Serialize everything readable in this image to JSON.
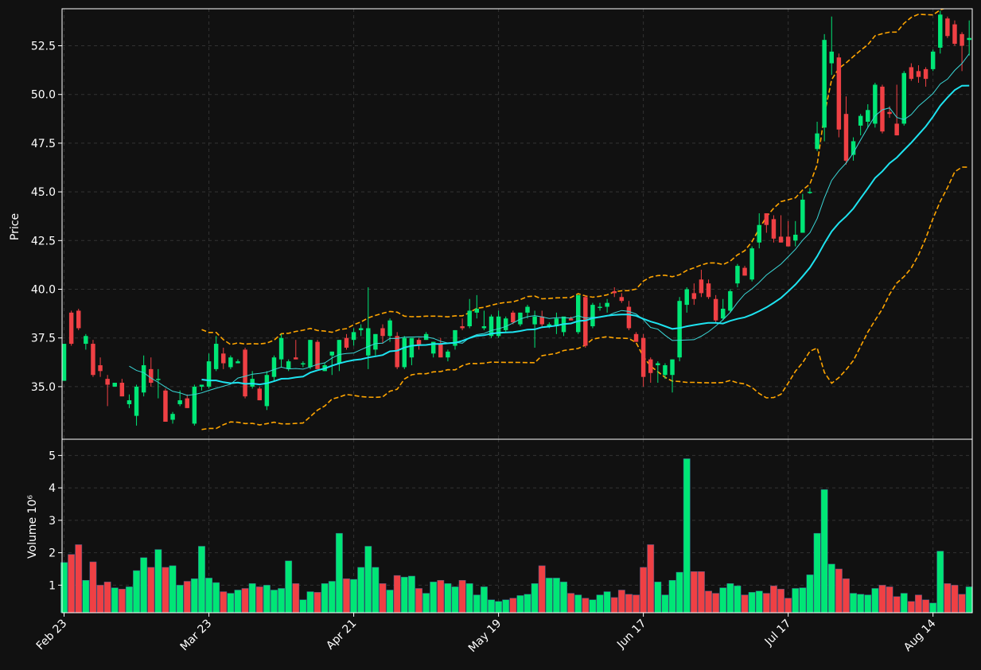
{
  "chart_data": {
    "type": "candlestick",
    "colors": {
      "background": "#111111",
      "up": "#00e676",
      "down": "#ef4044",
      "ma_short": "#3ad6d6",
      "ma_long": "#1ee3f0",
      "bollinger": "#ffa500",
      "grid": "#333333",
      "frame": "#ffffff"
    },
    "price_panel": {
      "ylabel": "Price",
      "ylim": [
        32.3,
        54.4
      ],
      "yticks": [
        35.0,
        37.5,
        40.0,
        42.5,
        45.0,
        47.5,
        50.0,
        52.5
      ],
      "ytick_labels": [
        "35.0",
        "37.5",
        "40.0",
        "42.5",
        "45.0",
        "47.5",
        "50.0",
        "52.5"
      ],
      "grid": true
    },
    "volume_panel": {
      "ylabel": "Volume  10⁶",
      "ylim": [
        0.15,
        5.5
      ],
      "yticks": [
        1,
        2,
        3,
        4,
        5
      ],
      "ytick_labels": [
        "1",
        "2",
        "3",
        "4",
        "5"
      ],
      "grid": true
    },
    "x_axis": {
      "tick_labels": [
        "Feb 23",
        "Mar 23",
        "Apr 21",
        "May 19",
        "Jun 17",
        "Jul 17",
        "Aug 14"
      ],
      "tick_index": [
        0,
        20,
        40,
        60,
        80,
        100,
        120
      ]
    },
    "ohlcv": [
      [
        "Feb 23",
        35.3,
        37.2,
        35.3,
        37.2,
        1.7
      ],
      [
        38.8,
        38.9,
        37.1,
        37.2,
        1.95
      ],
      [
        38.9,
        39.0,
        37.9,
        38.0,
        2.25
      ],
      [
        37.2,
        37.7,
        36.9,
        37.6,
        1.15
      ],
      [
        37.2,
        37.4,
        35.5,
        35.6,
        1.72
      ],
      [
        36.1,
        36.5,
        35.5,
        35.8,
        1.0
      ],
      [
        35.4,
        35.6,
        34.0,
        35.1,
        1.1
      ],
      [
        35.0,
        35.2,
        35.0,
        35.2,
        0.92
      ],
      [
        35.2,
        35.4,
        34.5,
        34.5,
        0.88
      ],
      [
        34.1,
        34.6,
        33.9,
        34.3,
        0.95
      ],
      [
        33.5,
        35.1,
        33.0,
        35.0,
        1.45
      ],
      [
        34.7,
        36.6,
        34.5,
        36.1,
        1.85
      ],
      [
        35.9,
        36.5,
        35.0,
        35.2,
        1.55
      ],
      [
        35.4,
        35.9,
        34.4,
        35.4,
        2.1
      ],
      [
        34.8,
        34.9,
        33.2,
        33.2,
        1.55
      ],
      [
        33.3,
        33.7,
        33.1,
        33.6,
        1.6
      ],
      [
        34.1,
        34.8,
        34.0,
        34.3,
        1.0
      ],
      [
        34.4,
        34.6,
        33.9,
        33.9,
        1.12
      ],
      [
        33.1,
        35.1,
        33.0,
        35.0,
        1.2
      ],
      [
        35.0,
        35.1,
        34.8,
        35.1,
        2.2
      ],
      [
        "Mar 23",
        35.0,
        36.7,
        34.9,
        36.3,
        1.22
      ],
      [
        35.9,
        37.6,
        35.8,
        37.2,
        1.08
      ],
      [
        36.7,
        37.0,
        35.9,
        36.2,
        0.8
      ],
      [
        36.0,
        36.6,
        35.9,
        36.5,
        0.75
      ],
      [
        36.2,
        36.4,
        36.2,
        36.3,
        0.85
      ],
      [
        36.9,
        37.0,
        34.4,
        34.5,
        0.9
      ],
      [
        35.0,
        35.8,
        34.9,
        35.4,
        1.05
      ],
      [
        34.9,
        35.0,
        34.3,
        34.3,
        0.95
      ],
      [
        34.0,
        35.8,
        33.8,
        35.6,
        1.0
      ],
      [
        35.5,
        36.6,
        35.3,
        36.5,
        0.85
      ],
      [
        36.4,
        37.7,
        36.0,
        37.5,
        0.9
      ],
      [
        35.9,
        36.4,
        35.8,
        36.3,
        1.75
      ],
      [
        36.5,
        37.4,
        36.4,
        36.4,
        1.05
      ],
      [
        36.2,
        36.3,
        36.0,
        36.2,
        0.55
      ],
      [
        36.0,
        37.4,
        35.9,
        37.4,
        0.8
      ],
      [
        37.3,
        37.4,
        35.9,
        35.9,
        0.78
      ],
      [
        35.8,
        36.2,
        35.8,
        36.1,
        1.05
      ],
      [
        36.6,
        36.8,
        35.6,
        36.8,
        1.12
      ],
      [
        36.2,
        37.4,
        35.8,
        37.4,
        2.6
      ],
      [
        37.5,
        37.7,
        36.9,
        37.0,
        1.2
      ],
      [
        "Apr 21",
        37.4,
        38.0,
        37.1,
        37.8,
        1.18
      ],
      [
        37.9,
        38.2,
        37.6,
        38.0,
        1.55
      ],
      [
        36.6,
        40.1,
        35.9,
        38.0,
        2.2
      ],
      [
        36.9,
        37.7,
        36.6,
        37.7,
        1.55
      ],
      [
        38.0,
        38.2,
        37.2,
        37.6,
        1.05
      ],
      [
        37.6,
        38.5,
        37.3,
        38.4,
        0.85
      ],
      [
        37.6,
        37.8,
        35.9,
        36.0,
        1.3
      ],
      [
        36.0,
        37.6,
        35.9,
        37.5,
        1.25
      ],
      [
        36.5,
        37.5,
        36.1,
        37.5,
        1.28
      ],
      [
        37.4,
        37.5,
        36.9,
        37.1,
        0.9
      ],
      [
        37.4,
        37.8,
        37.4,
        37.7,
        0.75
      ],
      [
        36.7,
        37.3,
        36.5,
        37.3,
        1.1
      ],
      [
        37.2,
        37.5,
        36.5,
        36.5,
        1.15
      ],
      [
        36.5,
        36.9,
        36.3,
        36.8,
        1.05
      ],
      [
        37.1,
        37.9,
        36.9,
        37.9,
        0.95
      ],
      [
        38.1,
        38.5,
        37.9,
        38.0,
        1.15
      ],
      [
        38.1,
        39.5,
        38.0,
        38.9,
        1.05
      ],
      [
        38.8,
        39.7,
        38.5,
        39.0,
        0.7
      ],
      [
        38.0,
        38.9,
        37.9,
        38.1,
        0.95
      ],
      [
        37.6,
        38.7,
        37.5,
        38.6,
        0.55
      ],
      [
        "May 19",
        37.6,
        38.9,
        37.5,
        38.6,
        0.5
      ],
      [
        37.9,
        38.6,
        37.8,
        38.5,
        0.55
      ],
      [
        38.8,
        38.9,
        38.2,
        38.3,
        0.6
      ],
      [
        38.2,
        38.8,
        38.1,
        38.8,
        0.68
      ],
      [
        38.8,
        39.2,
        38.5,
        39.1,
        0.72
      ],
      [
        38.2,
        38.9,
        37.0,
        38.6,
        1.05
      ],
      [
        38.6,
        38.9,
        38.1,
        38.2,
        1.6
      ],
      [
        38.1,
        38.3,
        38.0,
        38.2,
        1.22
      ],
      [
        38.1,
        38.8,
        37.7,
        38.5,
        1.22
      ],
      [
        37.8,
        38.5,
        37.6,
        38.6,
        1.1
      ],
      [
        38.5,
        38.6,
        38.4,
        38.4,
        0.75
      ],
      [
        37.8,
        39.7,
        37.7,
        39.7,
        0.7
      ],
      [
        39.6,
        39.7,
        37.0,
        37.1,
        0.6
      ],
      [
        38.1,
        39.3,
        38.0,
        39.2,
        0.55
      ],
      [
        39.1,
        39.3,
        38.9,
        39.1,
        0.7
      ],
      [
        39.1,
        39.5,
        38.8,
        39.3,
        0.8
      ],
      [
        39.9,
        40.1,
        39.6,
        39.8,
        0.62
      ],
      [
        39.6,
        39.8,
        39.3,
        39.4,
        0.85
      ],
      [
        39.1,
        39.4,
        37.9,
        38.0,
        0.72
      ],
      [
        37.7,
        37.8,
        37.3,
        37.3,
        0.7
      ],
      [
        "Jun 17",
        37.5,
        37.7,
        35.0,
        35.5,
        1.55
      ],
      [
        36.4,
        36.5,
        35.2,
        35.7,
        2.25
      ],
      [
        36.1,
        36.3,
        35.2,
        36.2,
        1.1
      ],
      [
        35.6,
        36.2,
        35.4,
        36.1,
        0.7
      ],
      [
        35.6,
        36.4,
        34.7,
        36.4,
        1.15
      ],
      [
        36.5,
        39.6,
        36.3,
        39.4,
        1.4
      ],
      [
        39.2,
        40.1,
        38.8,
        40.0,
        4.9
      ],
      [
        39.8,
        40.3,
        39.2,
        39.5,
        1.42
      ],
      [
        40.5,
        41.0,
        39.6,
        39.8,
        1.42
      ],
      [
        40.3,
        40.5,
        39.5,
        39.6,
        0.82
      ],
      [
        39.5,
        39.7,
        38.3,
        38.4,
        0.75
      ],
      [
        38.5,
        39.5,
        38.4,
        39.0,
        0.92
      ],
      [
        38.9,
        40.0,
        38.8,
        39.9,
        1.05
      ],
      [
        40.3,
        41.3,
        40.1,
        41.2,
        0.98
      ],
      [
        41.1,
        41.2,
        40.7,
        40.7,
        0.7
      ],
      [
        40.5,
        42.2,
        40.4,
        42.1,
        0.78
      ],
      [
        42.4,
        43.9,
        42.1,
        43.3,
        0.82
      ],
      [
        43.9,
        43.9,
        42.9,
        43.3,
        0.75
      ],
      [
        43.6,
        43.8,
        42.4,
        42.6,
        0.98
      ],
      [
        42.7,
        43.8,
        42.4,
        42.4,
        0.88
      ],
      [
        "Jul 17",
        42.7,
        43.5,
        42.2,
        42.2,
        0.6
      ],
      [
        42.5,
        43.5,
        42.2,
        42.8,
        0.9
      ],
      [
        42.9,
        44.9,
        42.9,
        44.6,
        0.92
      ],
      [
        45.0,
        45.2,
        44.9,
        45.0,
        1.32
      ],
      [
        47.2,
        48.6,
        47.1,
        48.0,
        2.6
      ],
      [
        48.3,
        53.1,
        47.6,
        52.8,
        3.95
      ],
      [
        51.6,
        54.0,
        51.0,
        52.2,
        1.65
      ],
      [
        51.9,
        52.1,
        47.8,
        48.2,
        1.5
      ],
      [
        49.0,
        49.9,
        46.4,
        46.6,
        1.2
      ],
      [
        46.9,
        47.8,
        46.6,
        47.6,
        0.75
      ],
      [
        48.4,
        49.0,
        47.9,
        48.9,
        0.72
      ],
      [
        48.6,
        49.5,
        48.3,
        49.2,
        0.7
      ],
      [
        48.5,
        50.6,
        48.3,
        50.5,
        0.9
      ],
      [
        50.4,
        50.5,
        48.0,
        48.1,
        1.0
      ],
      [
        49.1,
        49.4,
        48.8,
        49.0,
        0.95
      ],
      [
        48.5,
        50.5,
        47.9,
        47.9,
        0.65
      ],
      [
        48.5,
        51.2,
        48.4,
        51.1,
        0.75
      ],
      [
        51.4,
        51.6,
        50.7,
        50.8,
        0.5
      ],
      [
        51.2,
        51.5,
        50.6,
        50.9,
        0.7
      ],
      [
        51.3,
        51.4,
        50.4,
        50.8,
        0.55
      ],
      [
        51.3,
        52.3,
        51.2,
        52.2,
        0.45
      ],
      [
        "Aug 14",
        52.4,
        54.3,
        52.1,
        54.1,
        2.05
      ],
      [
        53.9,
        54.0,
        52.9,
        53.0,
        1.05
      ],
      [
        53.6,
        53.8,
        52.5,
        52.6,
        1.0
      ],
      [
        53.1,
        53.2,
        51.2,
        52.5,
        0.72
      ],
      [
        52.8,
        53.8,
        52.0,
        52.9,
        0.95
      ]
    ]
  }
}
